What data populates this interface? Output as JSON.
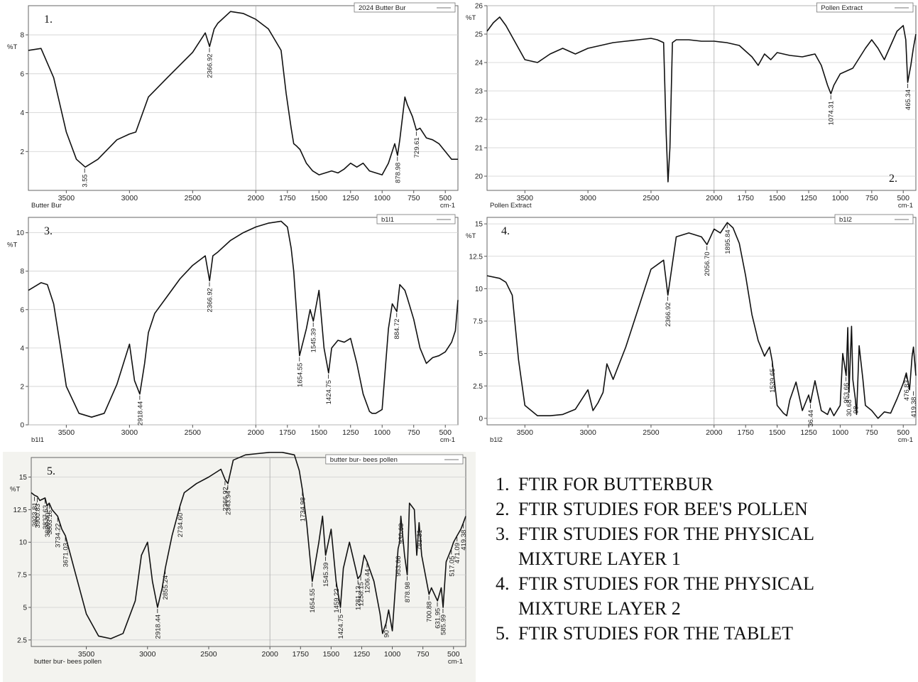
{
  "captions": [
    {
      "num": "1.",
      "text": "FTIR FOR BUTTERBUR"
    },
    {
      "num": "2.",
      "text": "FTIR STUDIES FOR BEE'S POLLEN"
    },
    {
      "num": "3.",
      "text": "FTIR STUDIES FOR THE PHYSICAL MIXTURE LAYER 1"
    },
    {
      "num": "4.",
      "text": "FTIR STUDIES FOR THE PHYSICAL MIXTURE LAYER 2"
    },
    {
      "num": "5.",
      "text": "FTIR STUDIES FOR THE TABLET"
    }
  ],
  "chart_data": [
    {
      "type": "line",
      "panel_number": "1.",
      "legend": "2024 Butter Bur",
      "sample_label": "Butter Bur",
      "ylabel": "%T",
      "xunit": "cm-1",
      "xlim": [
        3800,
        400
      ],
      "ylim": [
        0,
        9.5
      ],
      "xticks": [
        3500,
        3000,
        2500,
        2000,
        1750,
        1500,
        1250,
        1000,
        750,
        500
      ],
      "yticks": [
        2,
        4,
        6,
        8
      ],
      "x": [
        3800,
        3700,
        3600,
        3500,
        3420,
        3350,
        3250,
        3100,
        3000,
        2950,
        2850,
        2700,
        2500,
        2400,
        2366,
        2330,
        2300,
        2200,
        2100,
        2000,
        1900,
        1800,
        1760,
        1720,
        1700,
        1680,
        1650,
        1600,
        1550,
        1500,
        1450,
        1400,
        1350,
        1300,
        1250,
        1200,
        1150,
        1100,
        1050,
        1000,
        950,
        900,
        878,
        860,
        820,
        800,
        760,
        729,
        700,
        650,
        600,
        550,
        500,
        450,
        400
      ],
      "y": [
        7.2,
        7.3,
        5.8,
        3.0,
        1.6,
        1.2,
        1.6,
        2.6,
        2.9,
        3.0,
        4.8,
        5.8,
        7.1,
        8.1,
        7.4,
        8.3,
        8.6,
        9.2,
        9.1,
        8.8,
        8.3,
        7.2,
        5.0,
        3.2,
        2.4,
        2.3,
        2.1,
        1.4,
        1.0,
        0.8,
        0.9,
        1.0,
        0.9,
        1.1,
        1.4,
        1.2,
        1.4,
        1.0,
        0.9,
        0.8,
        1.4,
        2.4,
        1.8,
        2.6,
        4.8,
        4.4,
        3.8,
        3.1,
        3.2,
        2.7,
        2.6,
        2.4,
        2.0,
        1.6,
        1.6
      ],
      "peaks": [
        {
          "x": 3355,
          "y": 1.2,
          "label": "3.55"
        },
        {
          "x": 2366.92,
          "y": 7.4,
          "label": "2366.92"
        },
        {
          "x": 878.98,
          "y": 1.8,
          "label": "878.98"
        },
        {
          "x": 729.61,
          "y": 3.1,
          "label": "729.61"
        }
      ]
    },
    {
      "type": "line",
      "panel_number": "2.",
      "legend": "Pollen Extract",
      "sample_label": "Pollen Extract",
      "ylabel": "%T",
      "xunit": "cm-1",
      "xlim": [
        3800,
        400
      ],
      "ylim": [
        19.5,
        26
      ],
      "xticks": [
        3500,
        3000,
        2500,
        2000,
        1750,
        1500,
        1250,
        1000,
        750,
        500
      ],
      "yticks": [
        20,
        21,
        22,
        23,
        24,
        25,
        26
      ],
      "x": [
        3800,
        3750,
        3700,
        3650,
        3600,
        3500,
        3400,
        3300,
        3200,
        3100,
        3000,
        2900,
        2800,
        2700,
        2600,
        2500,
        2450,
        2400,
        2380,
        2365,
        2350,
        2330,
        2300,
        2200,
        2100,
        2000,
        1900,
        1800,
        1750,
        1700,
        1650,
        1600,
        1550,
        1500,
        1450,
        1400,
        1300,
        1200,
        1150,
        1100,
        1074,
        1050,
        1000,
        900,
        800,
        750,
        700,
        650,
        600,
        550,
        500,
        480,
        465,
        440,
        420,
        400
      ],
      "y": [
        25.1,
        25.4,
        25.6,
        25.3,
        24.9,
        24.1,
        24.0,
        24.3,
        24.5,
        24.3,
        24.5,
        24.6,
        24.7,
        24.75,
        24.8,
        24.85,
        24.8,
        24.7,
        21.5,
        19.8,
        21.0,
        24.7,
        24.8,
        24.8,
        24.75,
        24.75,
        24.7,
        24.6,
        24.4,
        24.2,
        23.9,
        24.3,
        24.1,
        24.35,
        24.3,
        24.25,
        24.2,
        24.3,
        23.9,
        23.2,
        22.9,
        23.2,
        23.6,
        23.8,
        24.5,
        24.8,
        24.5,
        24.1,
        24.6,
        25.1,
        25.3,
        24.8,
        23.3,
        23.9,
        24.5,
        25.0
      ],
      "peaks": [
        {
          "x": 1074.31,
          "y": 22.9,
          "label": "1074.31"
        },
        {
          "x": 465.34,
          "y": 23.3,
          "label": "465.34"
        }
      ]
    },
    {
      "type": "line",
      "panel_number": "3.",
      "legend": "b1l1",
      "sample_label": "b1l1",
      "ylabel": "%T",
      "xunit": "cm-1",
      "xlim": [
        3800,
        400
      ],
      "ylim": [
        0,
        10.8
      ],
      "xticks": [
        3500,
        3000,
        2500,
        2000,
        1750,
        1500,
        1250,
        1000,
        750,
        500
      ],
      "yticks": [
        0,
        2,
        4,
        6,
        8,
        10
      ],
      "x": [
        3800,
        3700,
        3650,
        3600,
        3550,
        3500,
        3400,
        3300,
        3200,
        3100,
        3000,
        2960,
        2918,
        2880,
        2850,
        2800,
        2700,
        2600,
        2500,
        2400,
        2366,
        2340,
        2300,
        2200,
        2100,
        2000,
        1900,
        1800,
        1750,
        1720,
        1700,
        1654,
        1600,
        1570,
        1545,
        1500,
        1460,
        1424,
        1400,
        1350,
        1300,
        1250,
        1200,
        1150,
        1100,
        1080,
        1050,
        1000,
        950,
        920,
        884,
        860,
        820,
        800,
        750,
        700,
        650,
        600,
        550,
        500,
        450,
        420,
        400
      ],
      "y": [
        7.0,
        7.4,
        7.3,
        6.3,
        4.2,
        2.0,
        0.6,
        0.4,
        0.6,
        2.1,
        4.2,
        2.3,
        1.6,
        3.2,
        4.8,
        5.8,
        6.7,
        7.6,
        8.3,
        8.8,
        7.5,
        8.8,
        9.0,
        9.6,
        10.0,
        10.3,
        10.5,
        10.6,
        10.3,
        9.2,
        8.0,
        3.6,
        5.0,
        6.0,
        5.4,
        7.0,
        4.0,
        2.7,
        4.0,
        4.4,
        4.3,
        4.5,
        3.2,
        1.6,
        0.7,
        0.6,
        0.6,
        0.8,
        5.0,
        6.3,
        5.9,
        7.3,
        7.0,
        6.6,
        5.5,
        4.0,
        3.2,
        3.5,
        3.6,
        3.8,
        4.3,
        4.9,
        6.5
      ],
      "peaks": [
        {
          "x": 2918.44,
          "y": 1.6,
          "label": "2918.44"
        },
        {
          "x": 2366.92,
          "y": 7.5,
          "label": "2366.92"
        },
        {
          "x": 1654.55,
          "y": 3.6,
          "label": "1654.55"
        },
        {
          "x": 1545.39,
          "y": 5.4,
          "label": "1545.39"
        },
        {
          "x": 1424.75,
          "y": 2.7,
          "label": "1424.75"
        },
        {
          "x": 884.72,
          "y": 5.9,
          "label": "884.72"
        }
      ]
    },
    {
      "type": "line",
      "panel_number": "4.",
      "legend": "b1l2",
      "sample_label": "b1l2",
      "ylabel": "%T",
      "xunit": "cm-1",
      "xlim": [
        3800,
        400
      ],
      "ylim": [
        -0.5,
        15.5
      ],
      "xticks": [
        3500,
        3000,
        2500,
        2000,
        1750,
        1500,
        1250,
        1000,
        750,
        500
      ],
      "yticks": [
        0.0,
        2.5,
        5.0,
        7.5,
        10.0,
        12.5,
        15.0
      ],
      "x": [
        3800,
        3700,
        3650,
        3600,
        3550,
        3500,
        3400,
        3300,
        3200,
        3100,
        3000,
        2960,
        2920,
        2880,
        2850,
        2800,
        2700,
        2600,
        2500,
        2400,
        2366,
        2300,
        2200,
        2100,
        2056,
        2000,
        1950,
        1895,
        1850,
        1800,
        1750,
        1700,
        1650,
        1600,
        1560,
        1539,
        1500,
        1450,
        1424,
        1400,
        1350,
        1300,
        1250,
        1236,
        1200,
        1150,
        1100,
        1080,
        1050,
        1000,
        980,
        953,
        940,
        930,
        910,
        900,
        880,
        870,
        850,
        820,
        800,
        750,
        700,
        650,
        600,
        550,
        500,
        476,
        450,
        430,
        419,
        400
      ],
      "y": [
        11.0,
        10.8,
        10.5,
        9.5,
        4.5,
        1.0,
        0.2,
        0.2,
        0.3,
        0.7,
        2.2,
        0.6,
        1.2,
        2.0,
        4.2,
        3.0,
        5.5,
        8.5,
        11.5,
        12.2,
        9.5,
        14.0,
        14.3,
        14.0,
        13.4,
        14.6,
        14.3,
        15.1,
        14.7,
        13.5,
        11.0,
        8.0,
        6.0,
        4.8,
        5.5,
        4.4,
        1.0,
        0.4,
        0.2,
        1.4,
        2.8,
        0.6,
        1.8,
        1.2,
        2.9,
        0.6,
        0.3,
        0.8,
        0.2,
        1.0,
        5.0,
        3.3,
        7.0,
        2.0,
        7.1,
        3.0,
        1.5,
        0.3,
        5.6,
        3.0,
        1.0,
        0.6,
        0.0,
        0.5,
        0.4,
        1.5,
        2.7,
        3.5,
        2.2,
        4.8,
        5.5,
        3.3
      ],
      "peaks": [
        {
          "x": 2366.92,
          "y": 9.5,
          "label": "2366.92"
        },
        {
          "x": 2056.7,
          "y": 13.4,
          "label": "2056.70"
        },
        {
          "x": 1895.84,
          "y": 15.1,
          "label": "1895.84"
        },
        {
          "x": 1539.65,
          "y": 4.4,
          "label": "1539.65"
        },
        {
          "x": 1236.44,
          "y": 1.2,
          "label": "36.44"
        },
        {
          "x": 953.66,
          "y": 3.3,
          "label": "953.66"
        },
        {
          "x": 930.68,
          "y": 2.0,
          "label": "30.68"
        },
        {
          "x": 878.98,
          "y": 1.5,
          "label": "98"
        },
        {
          "x": 476.83,
          "y": 3.5,
          "label": "476.83"
        },
        {
          "x": 419.38,
          "y": 2.2,
          "label": "419.38"
        }
      ]
    },
    {
      "type": "line",
      "panel_number": "5.",
      "legend": "butter bur- bees pollen",
      "sample_label": "butter bur- bees pollen",
      "ylabel": "%T",
      "xunit": "cm-1",
      "xlim": [
        3950,
        400
      ],
      "ylim": [
        2.0,
        16.5
      ],
      "xticks": [
        3500,
        3000,
        2500,
        2000,
        1750,
        1500,
        1250,
        1000,
        750,
        500
      ],
      "yticks": [
        2.5,
        5.0,
        7.5,
        10.0,
        12.5,
        15.0
      ],
      "x": [
        3950,
        3923,
        3900,
        3880,
        3837,
        3820,
        3803,
        3780,
        3734,
        3700,
        3671,
        3600,
        3500,
        3400,
        3300,
        3200,
        3100,
        3050,
        3000,
        2960,
        2918,
        2880,
        2855,
        2800,
        2734,
        2700,
        2600,
        2500,
        2400,
        2366,
        2343,
        2300,
        2200,
        2100,
        2000,
        1900,
        1800,
        1760,
        1734,
        1700,
        1654,
        1600,
        1570,
        1545,
        1500,
        1459,
        1424,
        1400,
        1350,
        1300,
        1281,
        1258,
        1230,
        1206,
        1150,
        1100,
        1080,
        1050,
        1030,
        1000,
        953,
        940,
        930,
        900,
        878,
        860,
        820,
        800,
        781,
        760,
        700,
        680,
        631,
        600,
        585,
        560,
        517,
        500,
        471,
        440,
        419,
        400
      ],
      "y": [
        13.8,
        13.6,
        13.5,
        13.2,
        13.4,
        12.8,
        13.0,
        12.5,
        12.0,
        11.0,
        10.5,
        8.0,
        4.5,
        2.8,
        2.6,
        3.0,
        5.5,
        9.0,
        10.0,
        7.0,
        5.0,
        6.5,
        8.0,
        10.5,
        12.8,
        13.8,
        14.5,
        15.0,
        15.6,
        14.8,
        14.5,
        16.3,
        16.7,
        16.8,
        16.9,
        16.9,
        16.7,
        15.5,
        14.0,
        11.5,
        7.0,
        10.0,
        12.0,
        9.0,
        11.0,
        7.0,
        5.0,
        8.0,
        10.0,
        8.0,
        7.2,
        7.5,
        9.0,
        8.5,
        7.0,
        4.5,
        3.0,
        3.8,
        4.8,
        3.2,
        9.5,
        10.0,
        12.0,
        9.0,
        7.5,
        13.0,
        12.5,
        9.0,
        11.5,
        9.0,
        6.0,
        6.5,
        5.5,
        6.5,
        5.0,
        8.5,
        9.5,
        10.0,
        10.5,
        11.0,
        11.5,
        12.0
      ],
      "peaks": [
        {
          "x": 3923.81,
          "y": 13.6,
          "label": "3923.81"
        },
        {
          "x": 3900.83,
          "y": 13.5,
          "label": "3900.83"
        },
        {
          "x": 3837.63,
          "y": 13.4,
          "label": "3837.63"
        },
        {
          "x": 3820.4,
          "y": 12.8,
          "label": "3820.40"
        },
        {
          "x": 3803.16,
          "y": 13.0,
          "label": "3803.16"
        },
        {
          "x": 3734.22,
          "y": 12.0,
          "label": "3734.22"
        },
        {
          "x": 3671.03,
          "y": 10.5,
          "label": "3671.03"
        },
        {
          "x": 2918.44,
          "y": 5.0,
          "label": "2918.44"
        },
        {
          "x": 2855.24,
          "y": 8.0,
          "label": "2855.24"
        },
        {
          "x": 2734.6,
          "y": 12.8,
          "label": "2734.60"
        },
        {
          "x": 2366.92,
          "y": 14.8,
          "label": "2366.92"
        },
        {
          "x": 2343.94,
          "y": 14.5,
          "label": "2343.94"
        },
        {
          "x": 1734.98,
          "y": 14.0,
          "label": "1734.98"
        },
        {
          "x": 1654.55,
          "y": 7.0,
          "label": "1654.55"
        },
        {
          "x": 1545.39,
          "y": 9.0,
          "label": "1545.39"
        },
        {
          "x": 1459.22,
          "y": 7.0,
          "label": "1459.22"
        },
        {
          "x": 1424.75,
          "y": 5.0,
          "label": "1424.75"
        },
        {
          "x": 1281.13,
          "y": 7.2,
          "label": "1281.13"
        },
        {
          "x": 1258.15,
          "y": 7.5,
          "label": "1258.15"
        },
        {
          "x": 1206.44,
          "y": 8.5,
          "label": "1206.44"
        },
        {
          "x": 1050,
          "y": 3.8,
          "label": "90"
        },
        {
          "x": 953.66,
          "y": 9.5,
          "label": "953.66"
        },
        {
          "x": 930.68,
          "y": 12.0,
          "label": "930.68"
        },
        {
          "x": 878.98,
          "y": 7.5,
          "label": "878.98"
        },
        {
          "x": 781.31,
          "y": 11.5,
          "label": "781.31"
        },
        {
          "x": 700.88,
          "y": 6.0,
          "label": "700.88"
        },
        {
          "x": 631.95,
          "y": 5.5,
          "label": "631.95"
        },
        {
          "x": 585.99,
          "y": 5.0,
          "label": "585.99"
        },
        {
          "x": 517.05,
          "y": 9.5,
          "label": "517.05"
        },
        {
          "x": 471.09,
          "y": 10.5,
          "label": "471.09"
        },
        {
          "x": 419.38,
          "y": 11.5,
          "label": "419.38"
        }
      ]
    }
  ]
}
